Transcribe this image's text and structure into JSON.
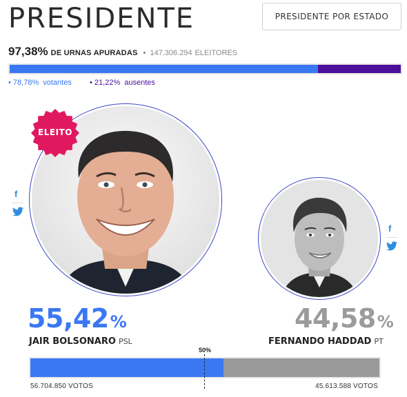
{
  "header": {
    "title": "PRESIDENTE",
    "state_button_label": "PRESIDENTE POR ESTADO"
  },
  "urnas": {
    "percent": "97,38%",
    "label": "DE URNAS APURADAS",
    "electors_count": "147.306.294",
    "electors_label": "ELEITORES"
  },
  "turnout": {
    "votantes_percent": "78,78%",
    "votantes_label": "votantes",
    "ausentes_percent": "21,22%",
    "ausentes_label": "ausentes",
    "votantes_fraction": 0.7878,
    "ausentes_fraction": 0.2122
  },
  "badge": {
    "label": "ELEITO"
  },
  "candidates": [
    {
      "percent": "55,42",
      "percent_symbol": "%",
      "name": "JAIR BOLSONARO",
      "party": "PSL",
      "votes": "56.704.850 VOTOS",
      "share_fraction": 0.5542,
      "color": "#3a78f2"
    },
    {
      "percent": "44,58",
      "percent_symbol": "%",
      "name": "FERNANDO HADDAD",
      "party": "PT",
      "votes": "45.613.588 VOTOS",
      "share_fraction": 0.4458,
      "color": "#9a9a9a"
    }
  ],
  "result_bar": {
    "midpoint_label": "50%"
  },
  "share_icons": [
    "facebook-icon",
    "twitter-icon"
  ],
  "colors": {
    "accent_blue": "#3a78f2",
    "ausentes_purple": "#4b0f9b",
    "loser_gray": "#9a9a9a",
    "badge_pink": "#e0195f",
    "photo_ring": "#3b47c4"
  }
}
